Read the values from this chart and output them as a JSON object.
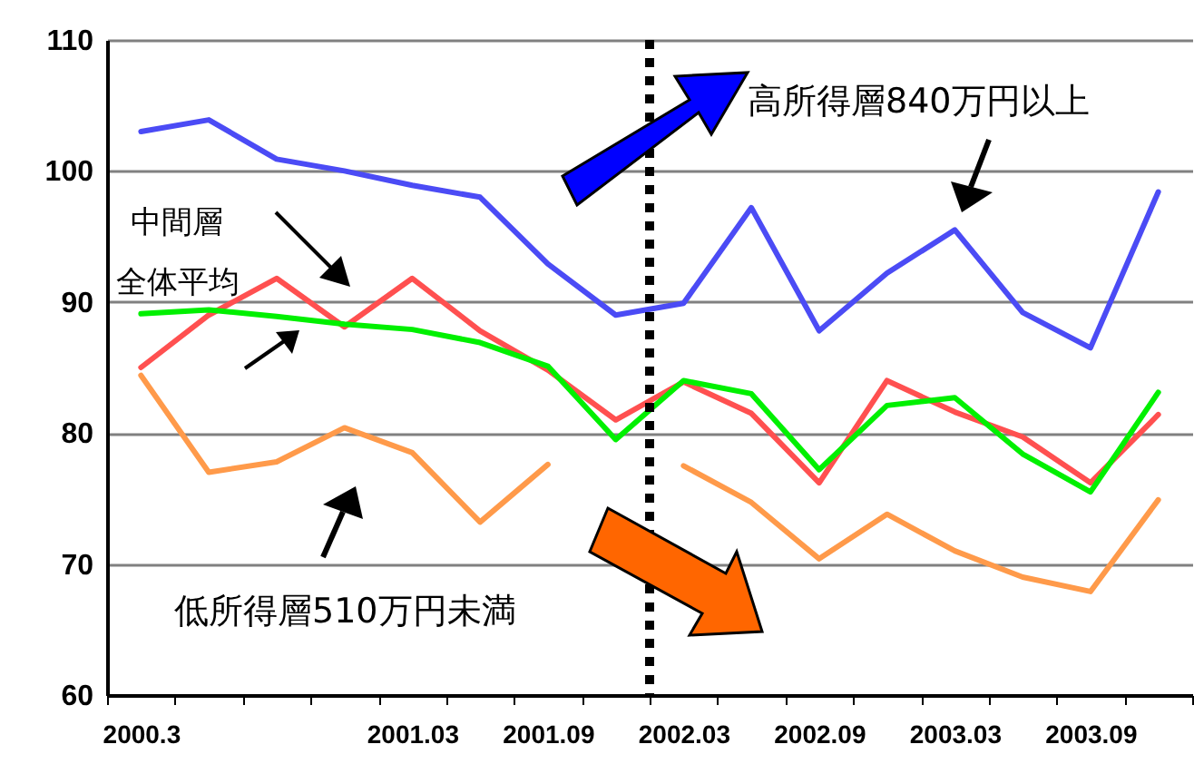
{
  "chart_data": {
    "type": "line",
    "categories": [
      "2000.3",
      null,
      null,
      null,
      "2001.03",
      null,
      "2001.09",
      null,
      "2002.03",
      null,
      "2002.09",
      null,
      "2003.03",
      null,
      "2003.09",
      null
    ],
    "ylim": [
      60,
      110
    ],
    "yticks": [
      60,
      70,
      80,
      90,
      100,
      110
    ],
    "grid": "y",
    "legend": false,
    "marker": "none",
    "line_style": "solid",
    "series": [
      {
        "name": "高所得層840万円以上",
        "color": "#4b4bf5",
        "values": [
          103.0,
          103.9,
          100.9,
          100.0,
          98.9,
          98.0,
          92.9,
          89.0,
          89.9,
          97.2,
          87.8,
          92.2,
          95.5,
          89.2,
          86.5,
          98.4
        ]
      },
      {
        "name": "中間層",
        "color": "#ff5050",
        "values": [
          85.0,
          89.0,
          91.8,
          88.1,
          91.8,
          87.8,
          84.8,
          81.0,
          83.9,
          81.5,
          76.2,
          84.0,
          81.6,
          79.7,
          76.2,
          81.4
        ]
      },
      {
        "name": "全体平均",
        "color": "#00f000",
        "values": [
          89.1,
          89.4,
          88.9,
          88.3,
          87.9,
          86.9,
          85.1,
          79.5,
          84.0,
          83.0,
          77.2,
          82.1,
          82.7,
          78.4,
          75.5,
          83.1
        ]
      },
      {
        "name": "低所得層510万円未満",
        "color": "#ff9a4a",
        "values": [
          84.4,
          77.0,
          77.8,
          80.4,
          78.5,
          73.2,
          77.6,
          null,
          77.5,
          74.7,
          70.4,
          73.8,
          71.0,
          69.0,
          67.9,
          74.9
        ]
      }
    ],
    "ref_lines": [
      {
        "axis": "x",
        "value": "2002.03",
        "color": "#000000",
        "line_style": "dotted"
      }
    ]
  }
}
